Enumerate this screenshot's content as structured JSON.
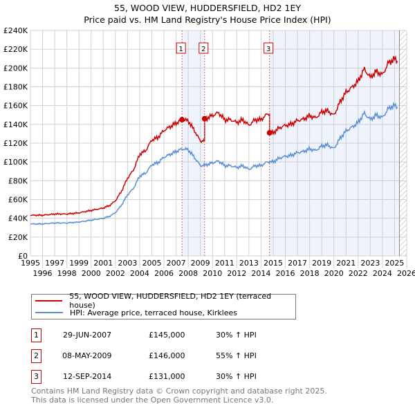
{
  "chart_data": {
    "type": "line",
    "title": "55, WOOD VIEW, HUDDERSFIELD, HD2 1EY",
    "subtitle": "Price paid vs. HM Land Registry's House Price Index (HPI)",
    "xlim": [
      1995,
      2026
    ],
    "ylim": [
      0,
      240000
    ],
    "x_ticks": [
      "1995",
      "1996",
      "1997",
      "1998",
      "1999",
      "2000",
      "2001",
      "2002",
      "2003",
      "2004",
      "2005",
      "2006",
      "2007",
      "2008",
      "2009",
      "2010",
      "2011",
      "2012",
      "2013",
      "2014",
      "2015",
      "2016",
      "2017",
      "2018",
      "2019",
      "2020",
      "2021",
      "2022",
      "2023",
      "2024",
      "2025",
      "2026"
    ],
    "y_ticks": [
      "£0",
      "£20K",
      "£40K",
      "£60K",
      "£80K",
      "£100K",
      "£120K",
      "£140K",
      "£160K",
      "£180K",
      "£200K",
      "£220K",
      "£240K"
    ],
    "grid": true,
    "series": [
      {
        "name": "55, WOOD VIEW, HUDDERSFIELD, HD2 1EY (terraced house)",
        "color": "#cc0000",
        "derived_from_hpi_and_sales": true
      },
      {
        "name": "HPI: Average price, terraced house, Kirklees",
        "color": "#5b8fd4",
        "x": [
          1995,
          1996,
          1997,
          1998,
          1999,
          2000,
          2000.5,
          2001,
          2001.5,
          2002,
          2002.5,
          2003,
          2003.5,
          2004,
          2004.5,
          2005,
          2005.5,
          2006,
          2006.5,
          2007,
          2007.5,
          2008,
          2008.5,
          2009,
          2009.5,
          2010,
          2010.5,
          2011,
          2011.5,
          2012,
          2012.5,
          2013,
          2013.5,
          2014,
          2014.5,
          2015,
          2015.5,
          2016,
          2016.5,
          2017,
          2017.5,
          2018,
          2018.5,
          2019,
          2019.5,
          2020,
          2020.5,
          2021,
          2021.5,
          2022,
          2022.5,
          2023,
          2023.5,
          2024,
          2024.5,
          2025,
          2025.3
        ],
        "y": [
          34000,
          34000,
          35000,
          35000,
          36000,
          38000,
          39000,
          40000,
          42000,
          46000,
          54000,
          65000,
          72000,
          85000,
          88000,
          97000,
          99000,
          105000,
          108000,
          111000,
          114000,
          113000,
          105000,
          96000,
          97000,
          99000,
          101000,
          96000,
          96000,
          94000,
          96000,
          92000,
          96000,
          96000,
          100000,
          100000,
          104000,
          106000,
          107000,
          110000,
          111000,
          114000,
          112000,
          117000,
          118000,
          114000,
          125000,
          133000,
          137000,
          142000,
          152000,
          145000,
          150000,
          147000,
          157000,
          160000,
          158000
        ]
      }
    ],
    "sales": [
      {
        "label": "1",
        "x": 2007.49,
        "date": "29-JUN-2007",
        "price": 145000,
        "price_text": "£145,000",
        "hpi_text": "30% ↑ HPI"
      },
      {
        "label": "2",
        "x": 2009.35,
        "date": "08-MAY-2009",
        "price": 146000,
        "price_text": "£146,000",
        "hpi_text": "55% ↑ HPI"
      },
      {
        "label": "3",
        "x": 2014.7,
        "date": "12-SEP-2014",
        "price": 131000,
        "price_text": "£131,000",
        "hpi_text": "30% ↑ HPI"
      }
    ],
    "legend_position": "below"
  },
  "footer": {
    "line1": "Contains HM Land Registry data © Crown copyright and database right 2025.",
    "line2": "This data is licensed under the Open Government Licence v3.0."
  }
}
